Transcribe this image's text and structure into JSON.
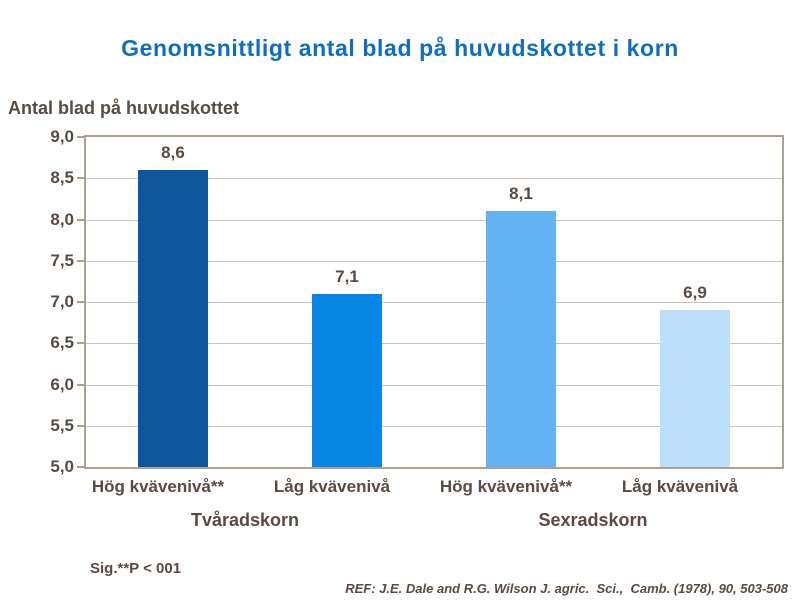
{
  "chart_data": {
    "type": "bar",
    "title": "Genomsnittligt antal blad på huvudskottet i korn",
    "ylabel": "Antal blad på huvudskottet",
    "xlabel": "",
    "categories": [
      "Hög kvävenivå**",
      "Låg kvävenivå",
      "Hög kvävenivå**",
      "Låg kvävenivå"
    ],
    "values": [
      8.6,
      7.1,
      8.1,
      6.9
    ],
    "value_labels": [
      "8,6",
      "7,1",
      "8,1",
      "6,9"
    ],
    "groups": [
      {
        "label": "Tvåradskorn",
        "category_indices": [
          0,
          1
        ]
      },
      {
        "label": "Sexradskorn",
        "category_indices": [
          2,
          3
        ]
      }
    ],
    "ylim": [
      5.0,
      9.0
    ],
    "yticks": [
      5.0,
      5.5,
      6.0,
      6.5,
      7.0,
      7.5,
      8.0,
      8.5,
      9.0
    ],
    "ytick_labels": [
      "5,0",
      "5,5",
      "6,0",
      "6,5",
      "7,0",
      "7,5",
      "8,0",
      "8,5",
      "9,0"
    ],
    "bar_colors": [
      "#0e579e",
      "#0786e5",
      "#63b2f4",
      "#bce0fb"
    ],
    "grid": true,
    "legend": "none"
  },
  "colors": {
    "title": "#0d6ec3",
    "text": "#5a4a42",
    "gridline": "#cbc3bb",
    "plot_border": "#aca094",
    "background": "#ffffff"
  },
  "footer": {
    "sig_note": "Sig.**P < 001",
    "reference": "REF: J.E. Dale and R.G. Wilson J. agric.  Sci.,  Camb. (1978), 90, 503-508"
  }
}
